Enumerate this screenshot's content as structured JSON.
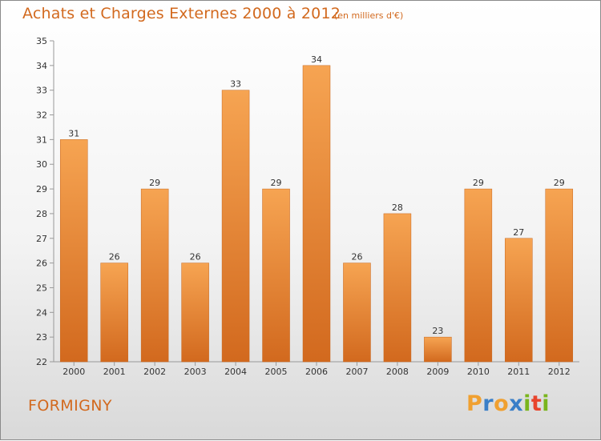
{
  "header": {
    "title": "Achats et Charges Externes 2000 à 2012",
    "subtitle": "(en milliers d'€)"
  },
  "footer": {
    "town": "FORMIGNY",
    "brand": "Proxiti"
  },
  "colors": {
    "title": "#d2691e",
    "bar_light": "#f6a452",
    "bar_dark": "#d2691e",
    "axis": "#999999",
    "text": "#333333",
    "brand_letters": [
      "#f0a030",
      "#3a7fc8",
      "#f0a030",
      "#3a7fc8",
      "#7ab51d",
      "#e8442c",
      "#7ab51d"
    ]
  },
  "chart_data": {
    "type": "bar",
    "title": "Achats et Charges Externes 2000 à 2012",
    "subtitle": "(en milliers d'€)",
    "categories": [
      "2000",
      "2001",
      "2002",
      "2003",
      "2004",
      "2005",
      "2006",
      "2007",
      "2008",
      "2009",
      "2010",
      "2011",
      "2012"
    ],
    "values": [
      31,
      26,
      29,
      26,
      33,
      29,
      34,
      26,
      28,
      23,
      29,
      27,
      29
    ],
    "data_labels": [
      "31",
      "26",
      "29",
      "26",
      "33",
      "29",
      "34",
      "26",
      "28",
      "23",
      "29",
      "27",
      "29"
    ],
    "yticks": [
      "22",
      "23",
      "24",
      "25",
      "26",
      "27",
      "28",
      "29",
      "30",
      "31",
      "32",
      "33",
      "34",
      "35"
    ],
    "ylim": [
      22,
      35
    ],
    "xlabel": "",
    "ylabel": "",
    "grid": false,
    "legend": "none"
  }
}
